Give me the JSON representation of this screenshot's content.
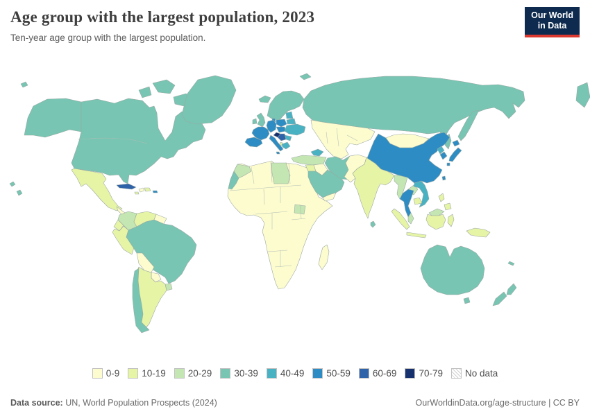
{
  "header": {
    "title": "Age group with the largest population, 2023",
    "subtitle": "Ten-year age group with the largest population.",
    "logo_line1": "Our World",
    "logo_line2": "in Data",
    "logo_bg": "#0e2a4f",
    "logo_accent": "#dc3a30"
  },
  "chart_data": {
    "type": "heatmap",
    "subtype": "world-choropleth",
    "title": "Age group with the largest population, 2023",
    "subtitle": "Ten-year age group with the largest population.",
    "categories": [
      "0-9",
      "10-19",
      "20-29",
      "30-39",
      "40-49",
      "50-59",
      "60-69",
      "70-79"
    ],
    "palette": {
      "0-9": "#fdfcce",
      "10-19": "#e6f4a6",
      "20-29": "#c4e6b2",
      "30-39": "#77c5b2",
      "40-49": "#48b2c3",
      "50-59": "#2d8cc3",
      "60-69": "#2e62a9",
      "70-79": "#17316f",
      "no_data": "hatch"
    },
    "legend_items": [
      {
        "label": "0-9",
        "key": "0-9"
      },
      {
        "label": "10-19",
        "key": "10-19"
      },
      {
        "label": "20-29",
        "key": "20-29"
      },
      {
        "label": "30-39",
        "key": "30-39"
      },
      {
        "label": "40-49",
        "key": "40-49"
      },
      {
        "label": "50-59",
        "key": "50-59"
      },
      {
        "label": "60-69",
        "key": "60-69"
      },
      {
        "label": "70-79",
        "key": "70-79"
      },
      {
        "label": "No data",
        "key": "no_data"
      }
    ],
    "regions": {
      "alaska": "30-39",
      "canada-usa": "30-39",
      "arctic-islands": "30-39",
      "greenland": "30-39",
      "iceland": "30-39",
      "hawaii": "30-39",
      "bering-islet": "30-39",
      "mexico": "10-19",
      "guatemala-honduras": "0-9",
      "nicaragua": "10-19",
      "costa-rica": "30-39",
      "panama": "20-29",
      "cuba": "60-69",
      "jamaica": "10-19",
      "haiti": "0-9",
      "dominican-republic": "10-19",
      "puerto-rico": "50-59",
      "colombia": "20-29",
      "venezuela": "10-19",
      "guyanas": "0-9",
      "ecuador": "10-19",
      "peru": "10-19",
      "brazil": "30-39",
      "bolivia": "0-9",
      "paraguay": "0-9",
      "uruguay": "20-29",
      "argentina": "10-19",
      "chile": "30-39",
      "africa-mainland": "0-9",
      "morocco": "20-29",
      "western-sahara": "30-39",
      "libya": "20-29",
      "south-sudan": "20-29",
      "madagascar": "0-9",
      "scandinavia": "30-39",
      "svalbard": "30-39",
      "united-kingdom": "30-39",
      "ireland": "30-39",
      "denmark": "50-59",
      "france": "50-59",
      "germany-central": "50-59",
      "iberia": "50-59",
      "italy": "50-59",
      "poland": "50-59",
      "czech-hungary": "50-59",
      "baltics": "40-49",
      "belarus": "40-49",
      "ukraine-romania": "40-49",
      "bulgaria": "40-49",
      "balkans": "60-69",
      "croatia": "70-79",
      "albania": "10-19",
      "greece": "40-49",
      "russia": "30-39",
      "kamchatka": "30-39",
      "sakhalin": "30-39",
      "chukotka-fragment": "30-39",
      "central-asia": "0-9",
      "caucasus": "40-49",
      "turkey": "20-29",
      "levant": "10-19",
      "iraq": "0-9",
      "saudi-arabia": "30-39",
      "yemen": "0-9",
      "iran": "30-39",
      "afghanistan-pakistan": "0-9",
      "india": "10-19",
      "sri-lanka": "30-39",
      "china": "50-59",
      "mongolia": "0-9",
      "north-korea": "40-49",
      "south-korea": "50-59",
      "japan-hokkaido": "50-59",
      "japan-honshu": "50-59",
      "japan-kyushu": "50-59",
      "taiwan": "50-59",
      "myanmar": "20-29",
      "laos": "20-29",
      "thailand": "50-59",
      "vietnam": "40-49",
      "cambodia": "10-19",
      "malay-peninsula": "20-29",
      "malaysia-borneo": "20-29",
      "sumatra": "10-19",
      "java": "10-19",
      "kalimantan": "10-19",
      "sulawesi": "10-19",
      "luzon": "10-19",
      "mindanao": "10-19",
      "new-guinea": "10-19",
      "australia": "30-39",
      "tasmania": "30-39",
      "nz-north": "30-39",
      "nz-south": "30-39",
      "new-caledonia": "30-39"
    }
  },
  "footer": {
    "source_label": "Data source:",
    "source_text": " UN, World Population Prospects (2024)",
    "right_text": "OurWorldinData.org/age-structure | CC BY"
  }
}
